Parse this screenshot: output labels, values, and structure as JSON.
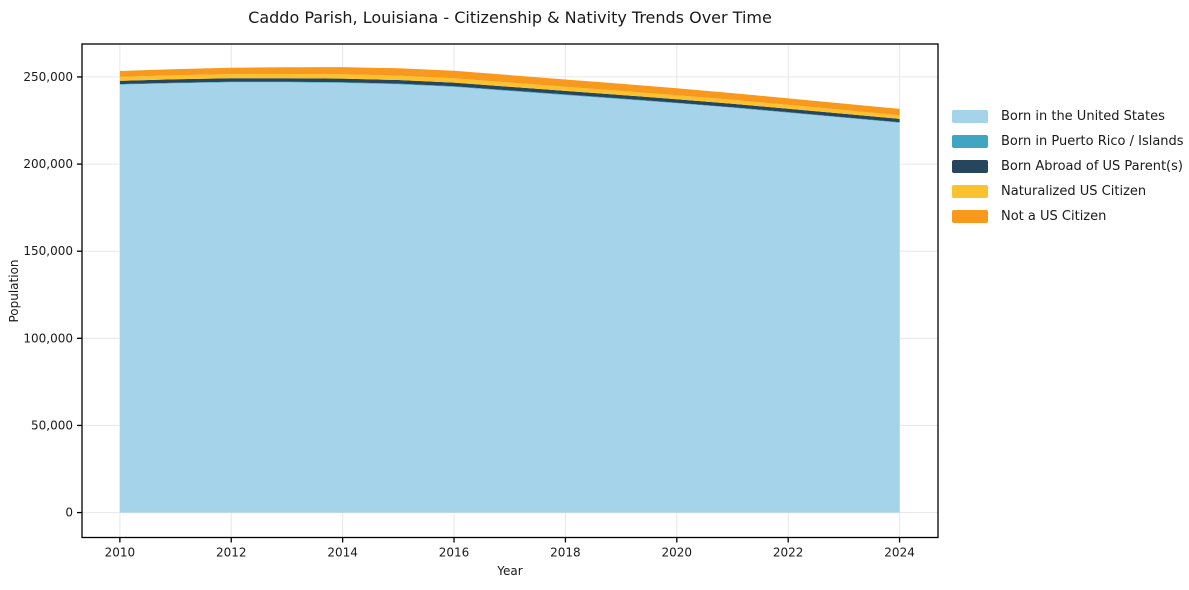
{
  "figure": {
    "background": "#ffffff"
  },
  "chart_data": {
    "type": "area",
    "stacked": true,
    "title": "Caddo Parish, Louisiana - Citizenship & Nativity Trends Over Time",
    "xlabel": "Year",
    "ylabel": "Population",
    "x": [
      2010,
      2011,
      2012,
      2013,
      2014,
      2015,
      2016,
      2017,
      2018,
      2019,
      2020,
      2021,
      2022,
      2023,
      2024
    ],
    "series": [
      {
        "name": "Born in the United States",
        "color": "#a5d3e9",
        "values": [
          245600,
          246400,
          246900,
          246900,
          246600,
          245800,
          244300,
          241900,
          239600,
          237300,
          234900,
          232300,
          229500,
          226600,
          223700
        ]
      },
      {
        "name": "Born in Puerto Rico / Islands",
        "color": "#3fa5c3",
        "values": [
          300,
          300,
          300,
          300,
          350,
          350,
          350,
          350,
          350,
          300,
          300,
          300,
          300,
          300,
          300
        ]
      },
      {
        "name": "Born Abroad of US Parent(s)",
        "color": "#25465c",
        "values": [
          1900,
          1950,
          2000,
          2050,
          2100,
          2100,
          2100,
          2100,
          2050,
          2050,
          2000,
          2000,
          1950,
          1950,
          1900
        ]
      },
      {
        "name": "Naturalized US Citizen",
        "color": "#fcc22d",
        "values": [
          2300,
          2350,
          2400,
          2450,
          2500,
          2500,
          2500,
          2450,
          2400,
          2350,
          2300,
          2250,
          2200,
          2150,
          2100
        ]
      },
      {
        "name": "Not a US Citizen",
        "color": "#f8981d",
        "values": [
          3300,
          3500,
          3700,
          3900,
          4100,
          4200,
          4300,
          4250,
          4150,
          4050,
          3950,
          3850,
          3750,
          3700,
          3650
        ]
      }
    ],
    "x_ticks": {
      "values": [
        2010,
        2012,
        2014,
        2016,
        2018,
        2020,
        2022,
        2024
      ],
      "labels": [
        "2010",
        "2012",
        "2014",
        "2016",
        "2018",
        "2020",
        "2022",
        "2024"
      ]
    },
    "y_ticks": {
      "values": [
        0,
        50000,
        100000,
        150000,
        200000,
        250000
      ],
      "labels": [
        "0",
        "50,000",
        "100,000",
        "150,000",
        "200,000",
        "250,000"
      ]
    },
    "xlim": [
      2009.32,
      2024.69
    ],
    "ylim": [
      -14300,
      268900
    ],
    "grid": true,
    "grid_color": "#e7e7e7",
    "spine_color": "#000000",
    "legend_position": "right"
  }
}
